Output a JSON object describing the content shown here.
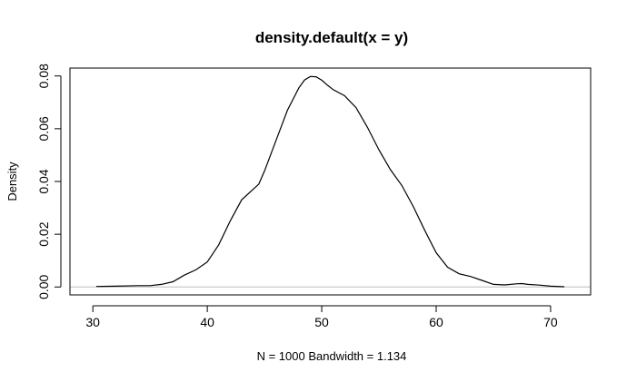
{
  "chart_data": {
    "type": "line",
    "title": "density.default(x = y)",
    "xlabel": "N = 1000   Bandwidth = 1.134",
    "ylabel": "Density",
    "xlim": [
      28,
      73.5
    ],
    "ylim": [
      -0.003,
      0.083
    ],
    "xticks": [
      30,
      40,
      50,
      60,
      70
    ],
    "yticks": [
      0.0,
      0.02,
      0.04,
      0.06,
      0.08
    ],
    "xtick_labels": [
      "30",
      "40",
      "50",
      "60",
      "70"
    ],
    "ytick_labels": [
      "0.00",
      "0.02",
      "0.04",
      "0.06",
      "0.08"
    ],
    "baseline": 0,
    "grid": false,
    "legend": "none",
    "colors": {
      "line": "#000000",
      "baseline": "#bebebe",
      "frame": "#000000",
      "background": "#ffffff"
    },
    "series": [
      {
        "x": [
          30.3,
          32,
          34,
          35,
          36,
          37,
          38,
          39,
          40,
          41,
          42,
          43,
          44,
          44.5,
          45,
          46,
          47,
          48,
          48.5,
          49,
          49.5,
          50,
          50.5,
          51,
          52,
          53,
          54,
          55,
          56,
          57,
          58,
          59,
          60,
          61,
          62,
          63,
          64,
          65,
          66,
          67,
          67.5,
          68,
          69,
          70,
          71.2
        ],
        "y": [
          0.0002,
          0.0003,
          0.0005,
          0.0005,
          0.001,
          0.002,
          0.0045,
          0.0065,
          0.0095,
          0.016,
          0.025,
          0.033,
          0.037,
          0.039,
          0.044,
          0.0555,
          0.067,
          0.0755,
          0.0785,
          0.0798,
          0.0797,
          0.0784,
          0.0765,
          0.0748,
          0.0725,
          0.068,
          0.0605,
          0.052,
          0.0445,
          0.0385,
          0.0305,
          0.0215,
          0.013,
          0.0075,
          0.005,
          0.004,
          0.0025,
          0.001,
          0.0008,
          0.0012,
          0.0013,
          0.001,
          0.0007,
          0.0003,
          0.0001
        ]
      }
    ]
  }
}
